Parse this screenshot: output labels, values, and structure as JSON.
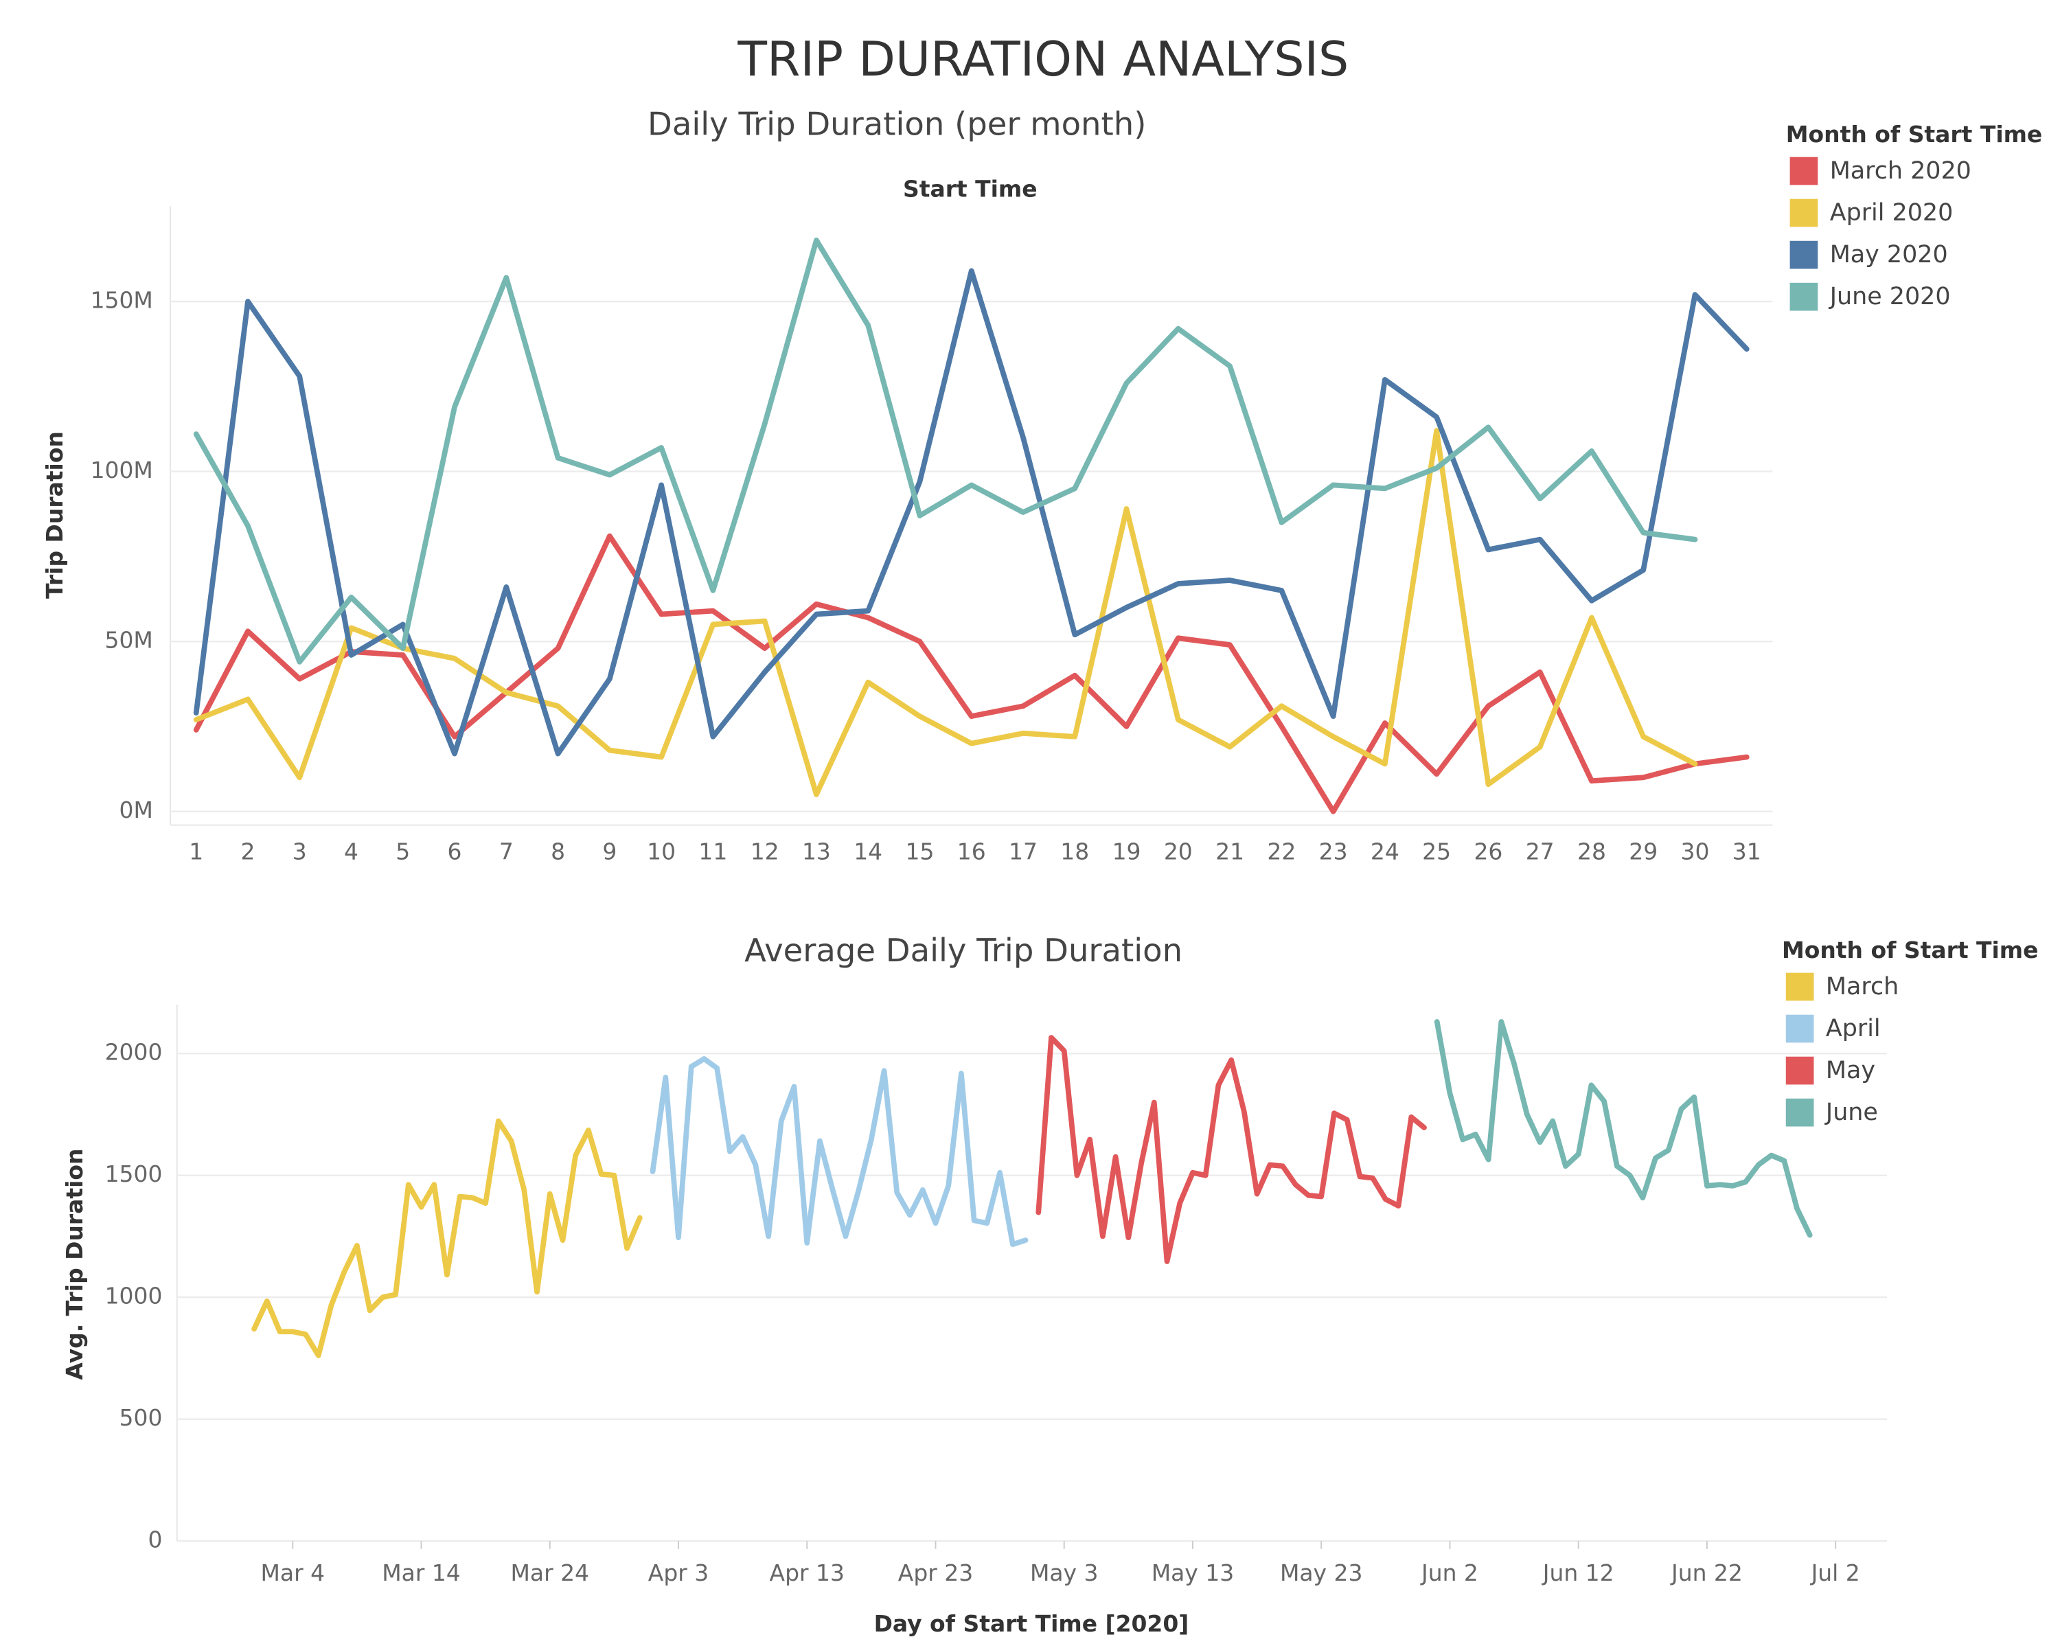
{
  "dashboard_title": "TRIP DURATION ANALYSIS",
  "chart_data": [
    {
      "type": "line",
      "title": "Daily Trip Duration (per month)",
      "x_header": "Start Time",
      "y_label": "Trip Duration",
      "legend_title": "Month of Start Time",
      "legend_position": "right",
      "grid": true,
      "categories": [
        1,
        2,
        3,
        4,
        5,
        6,
        7,
        8,
        9,
        10,
        11,
        12,
        13,
        14,
        15,
        16,
        17,
        18,
        19,
        20,
        21,
        22,
        23,
        24,
        25,
        26,
        27,
        28,
        29,
        30,
        31
      ],
      "ylim": [
        -4,
        178
      ],
      "yticks": [
        {
          "value": 0,
          "label": "0M"
        },
        {
          "value": 50,
          "label": "50M"
        },
        {
          "value": 100,
          "label": "100M"
        },
        {
          "value": 150,
          "label": "150M"
        }
      ],
      "series": [
        {
          "name": "March 2020",
          "color": "#e15759",
          "values": [
            24,
            53,
            39,
            47,
            46,
            22,
            35,
            48,
            81,
            58,
            59,
            48,
            61,
            57,
            50,
            28,
            31,
            40,
            25,
            51,
            49,
            25,
            0,
            26,
            11,
            31,
            41,
            9,
            10,
            14,
            16
          ]
        },
        {
          "name": "April 2020",
          "color": "#edc948",
          "values": [
            27,
            33,
            10,
            54,
            48,
            45,
            35,
            31,
            18,
            16,
            55,
            56,
            5,
            38,
            28,
            20,
            23,
            22,
            89,
            27,
            19,
            31,
            22,
            14,
            112,
            8,
            19,
            57,
            22,
            14,
            null
          ]
        },
        {
          "name": "May 2020",
          "color": "#4e79a7",
          "values": [
            29,
            150,
            128,
            46,
            55,
            17,
            66,
            17,
            39,
            96,
            22,
            41,
            58,
            59,
            97,
            159,
            110,
            52,
            60,
            67,
            68,
            65,
            28,
            127,
            116,
            77,
            80,
            62,
            71,
            152,
            136
          ]
        },
        {
          "name": "June 2020",
          "color": "#76b7b2",
          "values": [
            111,
            84,
            44,
            63,
            48,
            119,
            157,
            104,
            99,
            107,
            65,
            114,
            168,
            143,
            87,
            96,
            88,
            95,
            126,
            142,
            131,
            85,
            96,
            95,
            101,
            113,
            92,
            106,
            82,
            80,
            null
          ]
        }
      ]
    },
    {
      "type": "line",
      "title": "Average Daily Trip Duration",
      "x_label": "Day of Start Time [2020]",
      "y_label": "Avg. Trip Duration",
      "legend_title": "Month of Start Time",
      "legend_position": "right",
      "grid": true,
      "xlim": [
        "2020-02-24",
        "2020-07-06"
      ],
      "xticks": [
        {
          "value": "2020-03-04",
          "label": "Mar 4"
        },
        {
          "value": "2020-03-14",
          "label": "Mar 14"
        },
        {
          "value": "2020-03-24",
          "label": "Mar 24"
        },
        {
          "value": "2020-04-03",
          "label": "Apr 3"
        },
        {
          "value": "2020-04-13",
          "label": "Apr 13"
        },
        {
          "value": "2020-04-23",
          "label": "Apr 23"
        },
        {
          "value": "2020-05-03",
          "label": "May 3"
        },
        {
          "value": "2020-05-13",
          "label": "May 13"
        },
        {
          "value": "2020-05-23",
          "label": "May 23"
        },
        {
          "value": "2020-06-02",
          "label": "Jun 2"
        },
        {
          "value": "2020-06-12",
          "label": "Jun 12"
        },
        {
          "value": "2020-06-22",
          "label": "Jun 22"
        },
        {
          "value": "2020-07-02",
          "label": "Jul 2"
        }
      ],
      "ylim": [
        0,
        2200
      ],
      "yticks": [
        0,
        500,
        1000,
        1500,
        2000
      ],
      "series": [
        {
          "name": "March",
          "color": "#edc948",
          "x": [
            "2020-03-01",
            "2020-03-02",
            "2020-03-03",
            "2020-03-04",
            "2020-03-05",
            "2020-03-06",
            "2020-03-07",
            "2020-03-08",
            "2020-03-09",
            "2020-03-10",
            "2020-03-11",
            "2020-03-12",
            "2020-03-13",
            "2020-03-14",
            "2020-03-15",
            "2020-03-16",
            "2020-03-17",
            "2020-03-18",
            "2020-03-19",
            "2020-03-20",
            "2020-03-21",
            "2020-03-22",
            "2020-03-23",
            "2020-03-24",
            "2020-03-25",
            "2020-03-26",
            "2020-03-27",
            "2020-03-28",
            "2020-03-29",
            "2020-03-30",
            "2020-03-31"
          ],
          "values": [
            870,
            984,
            859,
            859,
            848,
            761,
            967,
            1103,
            1212,
            946,
            1000,
            1011,
            1462,
            1370,
            1462,
            1092,
            1413,
            1408,
            1386,
            1723,
            1641,
            1440,
            1022,
            1424,
            1234,
            1582,
            1685,
            1505,
            1500,
            1201,
            1326
          ]
        },
        {
          "name": "April",
          "color": "#a0cbe8",
          "x": [
            "2020-04-01",
            "2020-04-02",
            "2020-04-03",
            "2020-04-04",
            "2020-04-05",
            "2020-04-06",
            "2020-04-07",
            "2020-04-08",
            "2020-04-09",
            "2020-04-10",
            "2020-04-11",
            "2020-04-12",
            "2020-04-13",
            "2020-04-14",
            "2020-04-15",
            "2020-04-16",
            "2020-04-17",
            "2020-04-18",
            "2020-04-19",
            "2020-04-20",
            "2020-04-21",
            "2020-04-22",
            "2020-04-23",
            "2020-04-24",
            "2020-04-25",
            "2020-04-26",
            "2020-04-27",
            "2020-04-28",
            "2020-04-29",
            "2020-04-30"
          ],
          "values": [
            1516,
            1902,
            1245,
            1946,
            1978,
            1940,
            1598,
            1658,
            1543,
            1250,
            1723,
            1864,
            1223,
            1641,
            1440,
            1250,
            1435,
            1647,
            1929,
            1429,
            1337,
            1440,
            1304,
            1457,
            1918,
            1315,
            1304,
            1511,
            1217,
            1234
          ]
        },
        {
          "name": "May",
          "color": "#e15759",
          "x": [
            "2020-05-01",
            "2020-05-02",
            "2020-05-03",
            "2020-05-04",
            "2020-05-05",
            "2020-05-06",
            "2020-05-07",
            "2020-05-08",
            "2020-05-09",
            "2020-05-10",
            "2020-05-11",
            "2020-05-12",
            "2020-05-13",
            "2020-05-14",
            "2020-05-15",
            "2020-05-16",
            "2020-05-17",
            "2020-05-18",
            "2020-05-19",
            "2020-05-20",
            "2020-05-21",
            "2020-05-22",
            "2020-05-23",
            "2020-05-24",
            "2020-05-25",
            "2020-05-26",
            "2020-05-27",
            "2020-05-28",
            "2020-05-29",
            "2020-05-30",
            "2020-05-31"
          ],
          "values": [
            1348,
            2065,
            2011,
            1500,
            1647,
            1250,
            1576,
            1245,
            1549,
            1799,
            1147,
            1386,
            1511,
            1500,
            1870,
            1973,
            1761,
            1424,
            1543,
            1538,
            1462,
            1418,
            1413,
            1755,
            1728,
            1495,
            1489,
            1402,
            1375,
            1739,
            1696
          ]
        },
        {
          "name": "June",
          "color": "#76b7b2",
          "x": [
            "2020-06-01",
            "2020-06-02",
            "2020-06-03",
            "2020-06-04",
            "2020-06-05",
            "2020-06-06",
            "2020-06-07",
            "2020-06-08",
            "2020-06-09",
            "2020-06-10",
            "2020-06-11",
            "2020-06-12",
            "2020-06-13",
            "2020-06-14",
            "2020-06-15",
            "2020-06-16",
            "2020-06-17",
            "2020-06-18",
            "2020-06-19",
            "2020-06-20",
            "2020-06-21",
            "2020-06-22",
            "2020-06-23",
            "2020-06-24",
            "2020-06-25",
            "2020-06-26",
            "2020-06-27",
            "2020-06-28",
            "2020-06-29",
            "2020-06-30"
          ],
          "values": [
            2130,
            1837,
            1647,
            1668,
            1565,
            2130,
            1957,
            1750,
            1636,
            1723,
            1538,
            1587,
            1870,
            1804,
            1538,
            1500,
            1408,
            1571,
            1603,
            1772,
            1821,
            1457,
            1462,
            1457,
            1473,
            1543,
            1582,
            1560,
            1364,
            1255
          ]
        }
      ]
    }
  ]
}
